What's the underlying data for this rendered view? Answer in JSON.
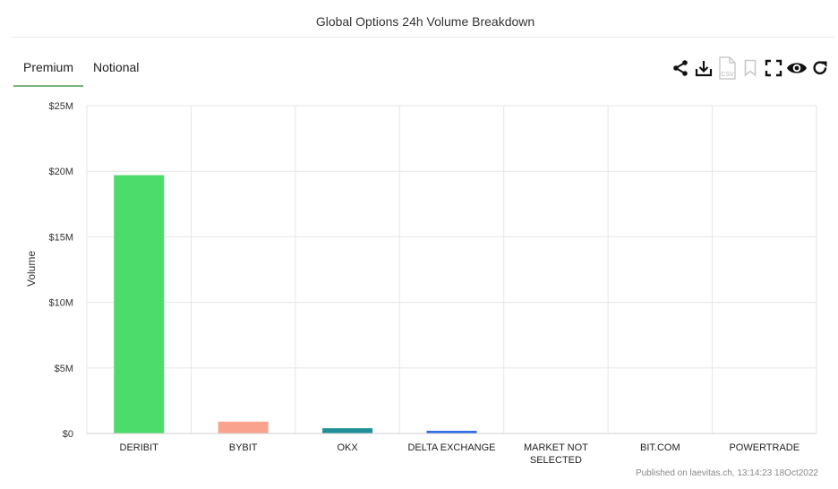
{
  "page": {
    "title": "Global Options 24h Volume Breakdown",
    "footer": "Published on laevitas.ch, 13:14:23 18Oct2022"
  },
  "tabs": [
    {
      "label": "Premium",
      "active": true
    },
    {
      "label": "Notional",
      "active": false
    }
  ],
  "toolbar": {
    "icons": [
      "share-icon",
      "download-icon",
      "csv-icon",
      "bookmark-icon",
      "fullscreen-icon",
      "eye-icon",
      "refresh-icon"
    ],
    "csv_label": "CSV"
  },
  "chart_data": {
    "type": "bar",
    "ylabel": "Volume",
    "ylim": [
      0,
      25000000
    ],
    "yticks": [
      0,
      5000000,
      10000000,
      15000000,
      20000000,
      25000000
    ],
    "ytick_labels": [
      "$0",
      "$5M",
      "$10M",
      "$15M",
      "$20M",
      "$25M"
    ],
    "categories": [
      [
        "DERIBIT"
      ],
      [
        "BYBIT"
      ],
      [
        "OKX"
      ],
      [
        "DELTA EXCHANGE"
      ],
      [
        "MARKET NOT",
        "SELECTED"
      ],
      [
        "BIT.COM"
      ],
      [
        "POWERTRADE"
      ]
    ],
    "values": [
      19700000,
      900000,
      400000,
      200000,
      0,
      0,
      0
    ],
    "colors": [
      "#4cdc6c",
      "#f9a38f",
      "#1f8f99",
      "#2566e8",
      "#999999",
      "#999999",
      "#999999"
    ],
    "grid": true
  }
}
